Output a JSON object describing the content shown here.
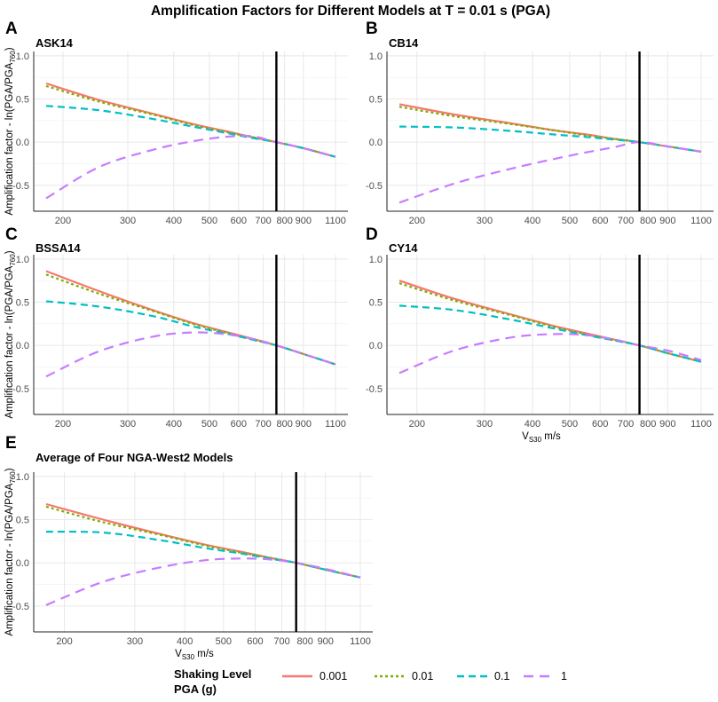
{
  "main_title": "Amplification Factors for Different Models at T = 0.01 s (PGA)",
  "ylabel": "Amplification factor - ln(PGA/PGA",
  "ylabel_sub": "760",
  "ylabel_end": ")",
  "xlabel_main": "V",
  "xlabel_sub": "S30",
  "xlabel_unit": " m/s",
  "legend": {
    "title_line1": "Shaking Level",
    "title_line2": "PGA (g)",
    "entries": [
      {
        "label": "0.001",
        "color": "#F8766D",
        "dash": "solid"
      },
      {
        "label": "0.01",
        "color": "#7CAE00",
        "dash": "dotted"
      },
      {
        "label": "0.1",
        "color": "#00BFC4",
        "dash": "dashed"
      },
      {
        "label": "1",
        "color": "#C77CFF",
        "dash": "longdash"
      }
    ]
  },
  "chart_data": [
    {
      "letter": "A",
      "title": "ASK14",
      "type": "line",
      "x_scale": "log",
      "xlim": [
        180,
        1100
      ],
      "ylim": [
        -0.8,
        1.05
      ],
      "xticks": [
        200,
        300,
        400,
        500,
        600,
        700,
        800,
        900,
        1100
      ],
      "yticks": [
        1.0,
        0.5,
        0.0,
        -0.5
      ],
      "vline": 760,
      "x": [
        180,
        250,
        350,
        450,
        550,
        650,
        760,
        900,
        1100
      ],
      "series": [
        {
          "name": "0.001",
          "values": [
            0.68,
            0.49,
            0.33,
            0.21,
            0.13,
            0.06,
            0.0,
            -0.07,
            -0.17
          ]
        },
        {
          "name": "0.01",
          "values": [
            0.65,
            0.47,
            0.32,
            0.2,
            0.12,
            0.06,
            0.0,
            -0.07,
            -0.17
          ]
        },
        {
          "name": "0.1",
          "values": [
            0.42,
            0.37,
            0.27,
            0.18,
            0.11,
            0.05,
            0.0,
            -0.07,
            -0.17
          ]
        },
        {
          "name": "1",
          "values": [
            -0.65,
            -0.29,
            -0.09,
            0.01,
            0.06,
            0.07,
            0.0,
            -0.07,
            -0.17
          ]
        }
      ]
    },
    {
      "letter": "B",
      "title": "CB14",
      "type": "line",
      "x_scale": "log",
      "xlim": [
        180,
        1100
      ],
      "ylim": [
        -0.8,
        1.05
      ],
      "xticks": [
        200,
        300,
        400,
        500,
        600,
        700,
        800,
        900,
        1100
      ],
      "yticks": [
        1.0,
        0.5,
        0.0,
        -0.5
      ],
      "vline": 760,
      "x": [
        180,
        250,
        350,
        450,
        550,
        650,
        760,
        900,
        1100
      ],
      "series": [
        {
          "name": "0.001",
          "values": [
            0.44,
            0.32,
            0.22,
            0.14,
            0.09,
            0.04,
            0.0,
            -0.05,
            -0.11
          ]
        },
        {
          "name": "0.01",
          "values": [
            0.41,
            0.3,
            0.21,
            0.14,
            0.08,
            0.04,
            0.0,
            -0.05,
            -0.11
          ]
        },
        {
          "name": "0.1",
          "values": [
            0.18,
            0.17,
            0.13,
            0.09,
            0.06,
            0.03,
            0.0,
            -0.05,
            -0.11
          ]
        },
        {
          "name": "1",
          "values": [
            -0.7,
            -0.48,
            -0.31,
            -0.2,
            -0.12,
            -0.06,
            0.0,
            -0.05,
            -0.11
          ]
        }
      ]
    },
    {
      "letter": "C",
      "title": "BSSA14",
      "type": "line",
      "x_scale": "log",
      "xlim": [
        180,
        1100
      ],
      "ylim": [
        -0.8,
        1.05
      ],
      "xticks": [
        200,
        300,
        400,
        500,
        600,
        700,
        800,
        900,
        1100
      ],
      "yticks": [
        1.0,
        0.5,
        0.0,
        -0.5
      ],
      "vline": 760,
      "x": [
        180,
        250,
        350,
        450,
        550,
        650,
        760,
        900,
        1100
      ],
      "series": [
        {
          "name": "0.001",
          "values": [
            0.86,
            0.63,
            0.41,
            0.26,
            0.16,
            0.08,
            0.0,
            -0.1,
            -0.22
          ]
        },
        {
          "name": "0.01",
          "values": [
            0.82,
            0.6,
            0.4,
            0.25,
            0.15,
            0.07,
            0.0,
            -0.1,
            -0.22
          ]
        },
        {
          "name": "0.1",
          "values": [
            0.51,
            0.45,
            0.34,
            0.22,
            0.14,
            0.07,
            0.0,
            -0.1,
            -0.22
          ]
        },
        {
          "name": "1",
          "values": [
            -0.36,
            -0.07,
            0.1,
            0.15,
            0.13,
            0.08,
            0.0,
            -0.1,
            -0.22
          ]
        }
      ]
    },
    {
      "letter": "D",
      "title": "CY14",
      "type": "line",
      "x_scale": "log",
      "xlim": [
        180,
        1100
      ],
      "ylim": [
        -0.8,
        1.05
      ],
      "xticks": [
        200,
        300,
        400,
        500,
        600,
        700,
        800,
        900,
        1100
      ],
      "yticks": [
        1.0,
        0.5,
        0.0,
        -0.5
      ],
      "vline": 760,
      "x": [
        180,
        250,
        350,
        450,
        550,
        650,
        760,
        900,
        1100
      ],
      "series": [
        {
          "name": "0.001",
          "values": [
            0.75,
            0.54,
            0.36,
            0.23,
            0.14,
            0.07,
            0.0,
            -0.09,
            -0.19
          ]
        },
        {
          "name": "0.01",
          "values": [
            0.72,
            0.52,
            0.35,
            0.22,
            0.13,
            0.06,
            0.0,
            -0.09,
            -0.19
          ]
        },
        {
          "name": "0.1",
          "values": [
            0.46,
            0.41,
            0.3,
            0.2,
            0.12,
            0.06,
            0.0,
            -0.09,
            -0.19
          ]
        },
        {
          "name": "1",
          "values": [
            -0.32,
            -0.06,
            0.09,
            0.13,
            0.12,
            0.07,
            0.0,
            -0.06,
            -0.17
          ]
        }
      ]
    },
    {
      "letter": "E",
      "title": "Average of Four NGA-West2 Models",
      "type": "line",
      "x_scale": "log",
      "xlim": [
        180,
        1100
      ],
      "ylim": [
        -0.8,
        1.05
      ],
      "xticks": [
        200,
        300,
        400,
        500,
        600,
        700,
        800,
        900,
        1100
      ],
      "yticks": [
        1.0,
        0.5,
        0.0,
        -0.5
      ],
      "vline": 760,
      "x": [
        180,
        250,
        350,
        450,
        550,
        650,
        760,
        900,
        1100
      ],
      "series": [
        {
          "name": "0.001",
          "values": [
            0.68,
            0.5,
            0.33,
            0.21,
            0.13,
            0.06,
            0.0,
            -0.08,
            -0.17
          ]
        },
        {
          "name": "0.01",
          "values": [
            0.65,
            0.47,
            0.32,
            0.2,
            0.12,
            0.06,
            0.0,
            -0.08,
            -0.17
          ]
        },
        {
          "name": "0.1",
          "values": [
            0.36,
            0.35,
            0.26,
            0.17,
            0.11,
            0.05,
            0.0,
            -0.08,
            -0.17
          ]
        },
        {
          "name": "1",
          "values": [
            -0.49,
            -0.22,
            -0.05,
            0.03,
            0.05,
            0.04,
            0.0,
            -0.07,
            -0.17
          ]
        }
      ]
    }
  ]
}
